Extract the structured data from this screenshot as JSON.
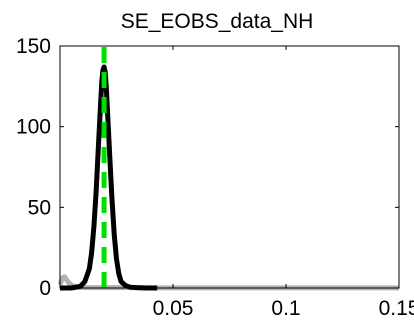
{
  "chart_data": {
    "type": "line",
    "title": "SE_EOBS_data_NH",
    "xlabel": "",
    "ylabel": "",
    "xlim": [
      0,
      0.15
    ],
    "ylim": [
      0,
      150
    ],
    "xticks": [
      0.05,
      0.1,
      0.15
    ],
    "xtick_labels": [
      "0.05",
      "0.1",
      "0.15"
    ],
    "yticks": [
      0,
      50,
      100,
      150
    ],
    "ytick_labels": [
      "0",
      "50",
      "100",
      "150"
    ],
    "grid": false,
    "legend": "none",
    "series": [
      {
        "color": "#000000",
        "style": "solid-thick",
        "x": [
          0.0,
          0.005,
          0.009,
          0.011,
          0.013,
          0.014,
          0.015,
          0.016,
          0.017,
          0.018,
          0.0185,
          0.019,
          0.0195,
          0.02,
          0.0205,
          0.021,
          0.022,
          0.023,
          0.024,
          0.025,
          0.026,
          0.027,
          0.029,
          0.031,
          0.034,
          0.038,
          0.043
        ],
        "y": [
          0,
          0,
          1,
          4,
          12,
          22,
          38,
          60,
          88,
          115,
          128,
          135,
          137,
          134,
          124,
          110,
          82,
          55,
          33,
          18,
          9,
          4,
          1.5,
          0.5,
          0.2,
          0,
          0
        ]
      },
      {
        "color": "#b3b3b3",
        "style": "solid-thick",
        "x": [
          0.0,
          0.001,
          0.002,
          0.003,
          0.004,
          0.006,
          0.008,
          0.01,
          0.02,
          0.03,
          0.04,
          0.05,
          0.075,
          0.1,
          0.125,
          0.15
        ],
        "y": [
          2,
          6,
          7,
          5,
          3,
          1,
          0.5,
          0.3,
          0.2,
          0.2,
          0.1,
          0.1,
          0.1,
          0.1,
          0.1,
          0.1
        ]
      },
      {
        "color": "#00e000",
        "style": "dashed-vertical",
        "x": [
          0.0195,
          0.0195
        ],
        "y": [
          0,
          150
        ]
      }
    ]
  }
}
